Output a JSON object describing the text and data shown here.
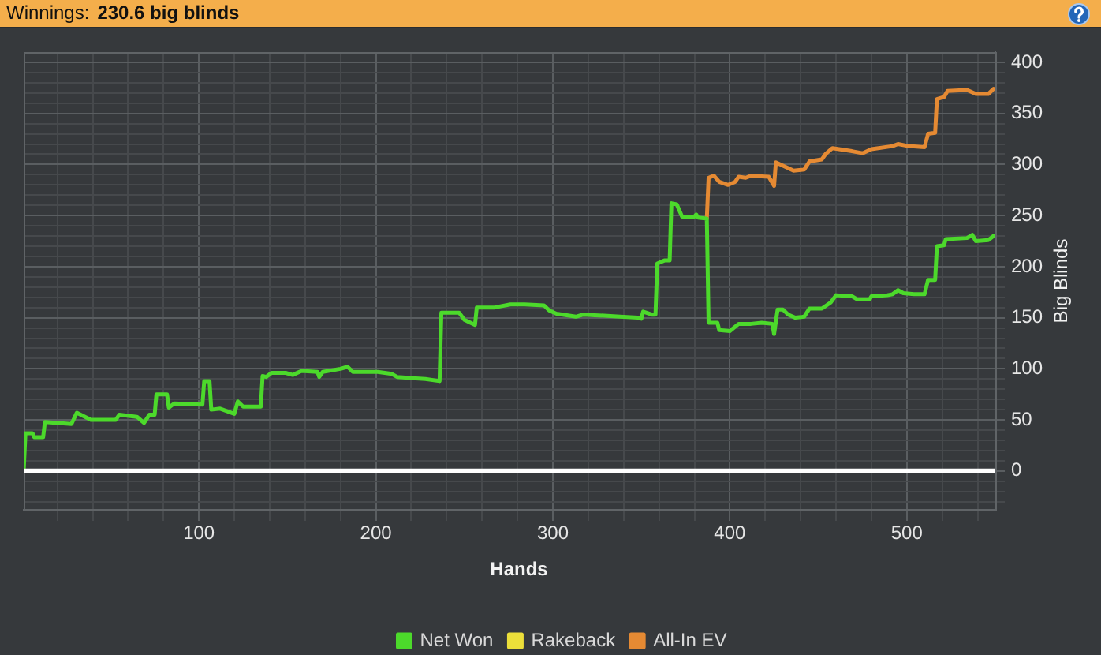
{
  "chart_data": {
    "type": "line",
    "title": "Winnings:",
    "subtitle": "230.6 big blinds",
    "xlabel": "Hands",
    "ylabel": "Big Blinds",
    "xlim": [
      1,
      550
    ],
    "ylim": [
      -38,
      410
    ],
    "xticks": [
      {
        "value": 20,
        "label": null
      },
      {
        "value": 40,
        "label": null
      },
      {
        "value": 60,
        "label": null
      },
      {
        "value": 80,
        "label": null
      },
      100,
      {
        "value": 120,
        "label": null
      },
      {
        "value": 140,
        "label": null
      },
      {
        "value": 160,
        "label": null
      },
      {
        "value": 180,
        "label": null
      },
      200,
      {
        "value": 220,
        "label": null
      },
      {
        "value": 240,
        "label": null
      },
      {
        "value": 260,
        "label": null
      },
      {
        "value": 280,
        "label": null
      },
      300,
      {
        "value": 320,
        "label": null
      },
      {
        "value": 340,
        "label": null
      },
      {
        "value": 360,
        "label": null
      },
      {
        "value": 380,
        "label": null
      },
      400,
      {
        "value": 420,
        "label": null
      },
      {
        "value": 440,
        "label": null
      },
      {
        "value": 460,
        "label": null
      },
      {
        "value": 480,
        "label": null
      },
      500,
      {
        "value": 520,
        "label": null
      },
      {
        "value": 540,
        "label": null
      }
    ],
    "yticks": [
      {
        "value": -30,
        "label": null
      },
      {
        "value": -20,
        "label": null
      },
      {
        "value": -10,
        "label": null
      },
      0,
      {
        "value": 10,
        "label": null
      },
      {
        "value": 20,
        "label": null
      },
      {
        "value": 30,
        "label": null
      },
      {
        "value": 40,
        "label": null
      },
      50,
      {
        "value": 60,
        "label": null
      },
      {
        "value": 70,
        "label": null
      },
      {
        "value": 80,
        "label": null
      },
      {
        "value": 90,
        "label": null
      },
      100,
      {
        "value": 110,
        "label": null
      },
      {
        "value": 120,
        "label": null
      },
      {
        "value": 130,
        "label": null
      },
      {
        "value": 140,
        "label": null
      },
      150,
      {
        "value": 160,
        "label": null
      },
      {
        "value": 170,
        "label": null
      },
      {
        "value": 180,
        "label": null
      },
      {
        "value": 190,
        "label": null
      },
      200,
      {
        "value": 210,
        "label": null
      },
      {
        "value": 220,
        "label": null
      },
      {
        "value": 230,
        "label": null
      },
      {
        "value": 240,
        "label": null
      },
      250,
      {
        "value": 260,
        "label": null
      },
      {
        "value": 270,
        "label": null
      },
      {
        "value": 280,
        "label": null
      },
      {
        "value": 290,
        "label": null
      },
      300,
      {
        "value": 310,
        "label": null
      },
      {
        "value": 320,
        "label": null
      },
      {
        "value": 330,
        "label": null
      },
      {
        "value": 340,
        "label": null
      },
      350,
      {
        "value": 360,
        "label": null
      },
      {
        "value": 370,
        "label": null
      },
      {
        "value": 380,
        "label": null
      },
      {
        "value": 390,
        "label": null
      },
      400
    ],
    "grid": true,
    "legend": "bottom",
    "marker": "none",
    "ref_lines": [
      {
        "axis": "y",
        "value": 0,
        "color": "#ffffff"
      }
    ],
    "series": [
      {
        "name": "Net Won",
        "color": "#4cd92b",
        "x": [
          1,
          2,
          6,
          7,
          12,
          13,
          28,
          31,
          39,
          53,
          55,
          65,
          69,
          72,
          75,
          76,
          82,
          83,
          86,
          102,
          103,
          106,
          107,
          112,
          120,
          122,
          125,
          135,
          136,
          138,
          141,
          149,
          153,
          158,
          167,
          168,
          170,
          180,
          184,
          187,
          201,
          209,
          212,
          219,
          228,
          236,
          237,
          247,
          250,
          256,
          257,
          267,
          276,
          284,
          295,
          298,
          302,
          313,
          317,
          329,
          338,
          348,
          350,
          351,
          356,
          358,
          359,
          363,
          366,
          367,
          370,
          373,
          380,
          381,
          382,
          387,
          388,
          393,
          394,
          400,
          405,
          412,
          418,
          424,
          425,
          427,
          430,
          433,
          437,
          442,
          445,
          452,
          457,
          460,
          469,
          472,
          479,
          480,
          489,
          492,
          495,
          498,
          504,
          510,
          512,
          516,
          517,
          521,
          522,
          534,
          537,
          539,
          546,
          549
        ],
        "values": [
          0,
          37,
          37,
          33,
          33,
          48,
          46,
          57,
          50,
          50,
          55,
          53,
          47,
          55,
          55,
          75,
          75,
          62,
          66,
          65,
          88,
          88,
          60,
          61,
          56,
          68,
          63,
          63,
          93,
          92,
          96,
          96,
          94,
          98,
          97,
          92,
          97,
          100,
          102,
          97,
          97,
          95,
          92,
          91,
          90,
          88,
          155,
          155,
          148,
          143,
          160,
          160,
          163,
          163,
          162,
          157,
          154,
          151,
          153,
          152,
          151,
          150,
          149,
          156,
          153,
          153,
          203,
          206,
          206,
          262,
          261,
          249,
          249,
          251,
          248,
          247,
          145,
          145,
          138,
          137,
          144,
          144,
          145,
          144,
          134,
          158,
          158,
          153,
          150,
          151,
          159,
          159,
          165,
          172,
          171,
          168,
          168,
          171,
          172,
          173,
          177,
          174,
          173,
          173,
          187,
          187,
          220,
          221,
          227,
          228,
          231,
          225,
          226,
          230
        ]
      },
      {
        "name": "Rakeback",
        "color": "#ecdf3a"
      },
      {
        "name": "All-In EV",
        "color": "#e58a33",
        "x": [
          387,
          388,
          391,
          394,
          399,
          403,
          405,
          409,
          412,
          422,
          425,
          426,
          431,
          436,
          442,
          445,
          452,
          454,
          458,
          469,
          475,
          480,
          492,
          495,
          501,
          510,
          512,
          516,
          517,
          521,
          523,
          534,
          539,
          546,
          549
        ],
        "values": [
          247,
          287,
          289,
          283,
          280,
          283,
          288,
          287,
          289,
          288,
          279,
          302,
          298,
          294,
          295,
          303,
          305,
          310,
          316,
          313,
          311,
          315,
          318,
          320,
          318,
          317,
          330,
          331,
          364,
          366,
          372,
          373,
          369,
          369,
          374
        ]
      }
    ]
  }
}
